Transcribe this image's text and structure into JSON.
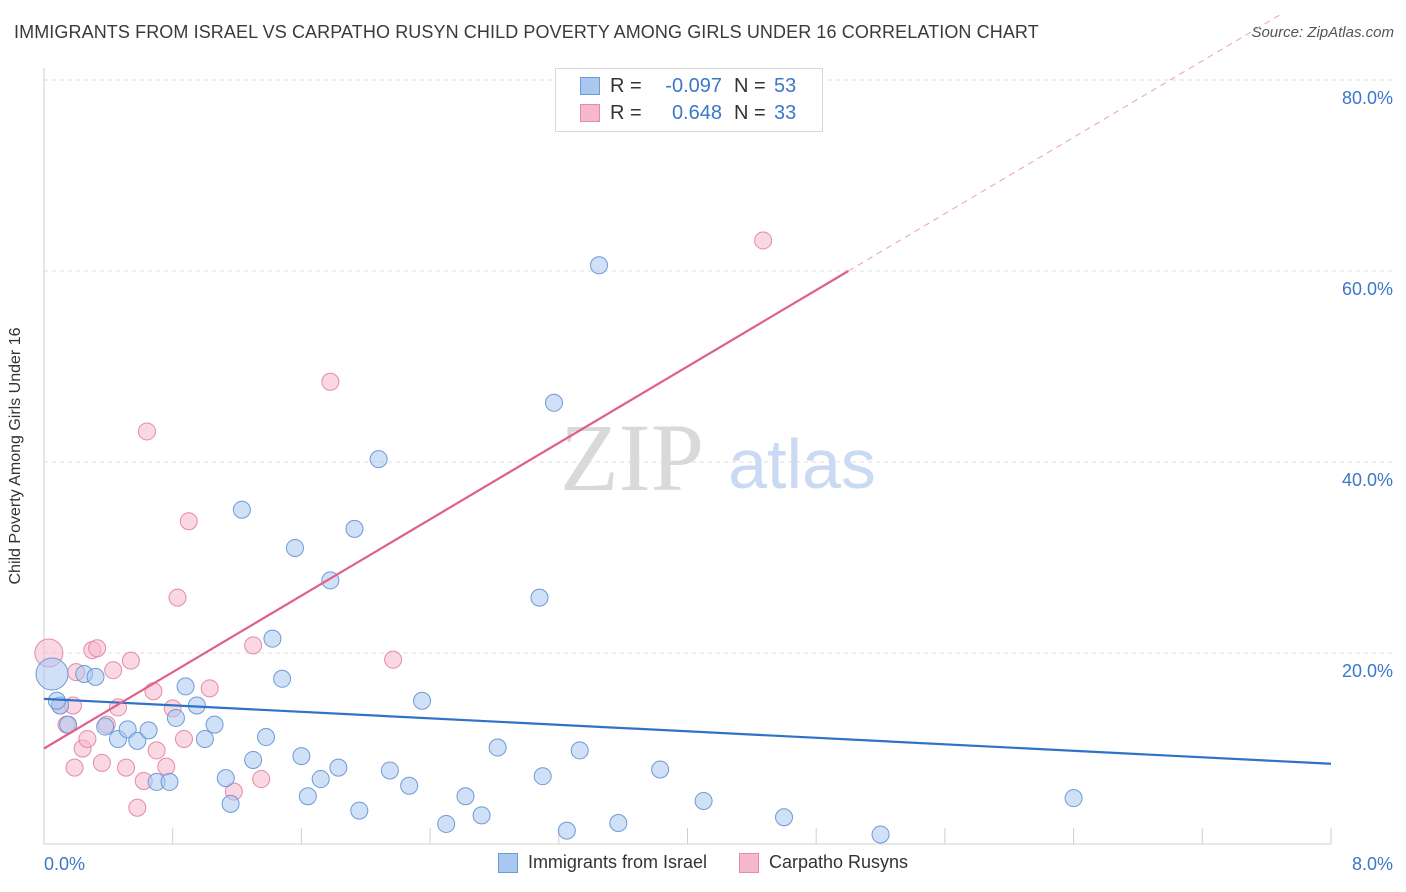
{
  "title": "IMMIGRANTS FROM ISRAEL VS CARPATHO RUSYN CHILD POVERTY AMONG GIRLS UNDER 16 CORRELATION CHART",
  "source": "Source: ZipAtlas.com",
  "watermark": {
    "zip": "ZIP",
    "atlas": "atlas"
  },
  "legend_top": {
    "rows": [
      {
        "r_label": "R =",
        "r_value": "-0.097",
        "n_label": "N =",
        "n_value": "53"
      },
      {
        "r_label": "R =",
        "r_value": "0.648",
        "n_label": "N =",
        "n_value": "33"
      }
    ]
  },
  "colors": {
    "israel_fill": "#a9c8f0",
    "israel_stroke": "#6e9ad6",
    "israel_line": "#2f72c8",
    "rusyn_fill": "#f6b8cc",
    "rusyn_stroke": "#e68aa8",
    "rusyn_line": "#e0608a",
    "grid": "#dddddd",
    "tick_label": "#3b78c8"
  },
  "chart_data": {
    "type": "scatter",
    "title": "IMMIGRANTS FROM ISRAEL VS CARPATHO RUSYN CHILD POVERTY AMONG GIRLS UNDER 16 CORRELATION CHART",
    "xlabel": "",
    "ylabel": "Child Poverty Among Girls Under 16",
    "xlim": [
      0,
      8
    ],
    "ylim": [
      0,
      80
    ],
    "x_tick_labels": [
      "0.0%",
      "8.0%"
    ],
    "y_tick_labels": [
      "20.0%",
      "40.0%",
      "60.0%",
      "80.0%"
    ],
    "y_ticks": [
      20,
      40,
      60,
      80
    ],
    "legend_position": "bottom",
    "series": [
      {
        "name": "Immigrants from Israel",
        "r": -0.097,
        "n": 53,
        "trend": {
          "x": [
            0,
            8
          ],
          "y": [
            15.2,
            8.4
          ]
        },
        "points": [
          [
            0.05,
            17.8
          ],
          [
            0.1,
            14.5
          ],
          [
            0.15,
            12.5
          ],
          [
            0.25,
            17.8
          ],
          [
            0.32,
            17.5
          ],
          [
            0.38,
            12.3
          ],
          [
            0.46,
            11.0
          ],
          [
            0.52,
            12.0
          ],
          [
            0.58,
            10.8
          ],
          [
            0.65,
            11.9
          ],
          [
            0.7,
            6.5
          ],
          [
            0.78,
            6.5
          ],
          [
            0.82,
            13.2
          ],
          [
            0.88,
            16.5
          ],
          [
            0.95,
            14.5
          ],
          [
            1.0,
            11.0
          ],
          [
            1.06,
            12.5
          ],
          [
            1.13,
            6.9
          ],
          [
            1.16,
            4.2
          ],
          [
            1.23,
            35.0
          ],
          [
            1.3,
            8.8
          ],
          [
            1.38,
            11.2
          ],
          [
            1.42,
            21.5
          ],
          [
            1.48,
            17.3
          ],
          [
            1.56,
            31.0
          ],
          [
            1.6,
            9.2
          ],
          [
            1.64,
            5.0
          ],
          [
            1.72,
            6.8
          ],
          [
            1.78,
            27.6
          ],
          [
            1.83,
            8.0
          ],
          [
            1.93,
            33.0
          ],
          [
            1.96,
            3.5
          ],
          [
            2.08,
            40.3
          ],
          [
            2.15,
            7.7
          ],
          [
            2.27,
            6.1
          ],
          [
            2.35,
            15.0
          ],
          [
            2.5,
            2.1
          ],
          [
            2.62,
            5.0
          ],
          [
            2.72,
            3.0
          ],
          [
            2.82,
            10.1
          ],
          [
            3.08,
            25.8
          ],
          [
            3.1,
            7.1
          ],
          [
            3.17,
            46.2
          ],
          [
            3.25,
            1.4
          ],
          [
            3.33,
            9.8
          ],
          [
            3.45,
            60.6
          ],
          [
            3.57,
            2.2
          ],
          [
            3.83,
            7.8
          ],
          [
            4.1,
            4.5
          ],
          [
            4.6,
            2.8
          ],
          [
            5.2,
            1.0
          ],
          [
            6.4,
            4.8
          ],
          [
            0.08,
            15.0
          ]
        ]
      },
      {
        "name": "Carpatho Rusyns",
        "r": 0.648,
        "n": 33,
        "trend": {
          "x": [
            0,
            5.0
          ],
          "y": [
            10.0,
            60.0
          ],
          "dashed_x": [
            5.0,
            7.7
          ],
          "dashed_y": [
            60.0,
            87.0
          ]
        },
        "points": [
          [
            0.03,
            20.0
          ],
          [
            0.1,
            14.5
          ],
          [
            0.14,
            12.5
          ],
          [
            0.18,
            14.5
          ],
          [
            0.2,
            18.0
          ],
          [
            0.19,
            8.0
          ],
          [
            0.24,
            10.0
          ],
          [
            0.27,
            11.0
          ],
          [
            0.3,
            20.3
          ],
          [
            0.33,
            20.5
          ],
          [
            0.36,
            8.5
          ],
          [
            0.39,
            12.5
          ],
          [
            0.43,
            18.2
          ],
          [
            0.46,
            14.3
          ],
          [
            0.51,
            8.0
          ],
          [
            0.54,
            19.2
          ],
          [
            0.58,
            3.8
          ],
          [
            0.62,
            6.6
          ],
          [
            0.64,
            43.2
          ],
          [
            0.68,
            16.0
          ],
          [
            0.7,
            9.8
          ],
          [
            0.76,
            8.1
          ],
          [
            0.8,
            14.2
          ],
          [
            0.83,
            25.8
          ],
          [
            0.87,
            11.0
          ],
          [
            0.9,
            33.8
          ],
          [
            1.03,
            16.3
          ],
          [
            1.18,
            5.5
          ],
          [
            1.3,
            20.8
          ],
          [
            1.35,
            6.8
          ],
          [
            1.78,
            48.4
          ],
          [
            2.17,
            19.3
          ],
          [
            4.47,
            63.2
          ]
        ]
      }
    ]
  },
  "legend_bottom": {
    "items": [
      {
        "label": "Immigrants from Israel"
      },
      {
        "label": "Carpatho Rusyns"
      }
    ]
  }
}
